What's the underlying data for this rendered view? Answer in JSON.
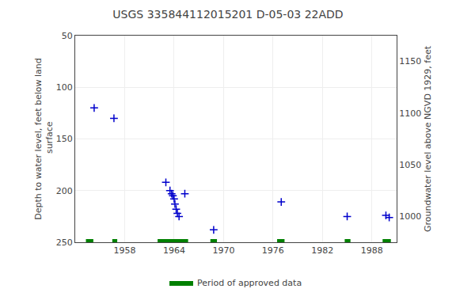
{
  "chart_data": {
    "type": "scatter",
    "title": "USGS 335844112015201 D-05-03 22ADD",
    "ylabel": "Depth to water level, feet below land\n surface",
    "y2label": "Groundwater level above NGVD 1929, feet",
    "xlim": [
      1952,
      1991
    ],
    "xticks": [
      1958,
      1964,
      1970,
      1976,
      1982,
      1988
    ],
    "ylim": [
      250,
      50
    ],
    "yticks": [
      50,
      100,
      150,
      200,
      250
    ],
    "y2lim": [
      975,
      1175
    ],
    "y2ticks": [
      1000,
      1050,
      1100,
      1150
    ],
    "grid": true,
    "legend": "bottom",
    "series": [
      {
        "type": "scatter",
        "marker": "plus",
        "color": "#0000CC",
        "x": [
          1954.3,
          1956.7,
          1963.0,
          1963.5,
          1963.7,
          1963.85,
          1964.0,
          1964.1,
          1964.25,
          1964.4,
          1964.6,
          1965.3,
          1968.8,
          1977.0,
          1985.0,
          1989.7,
          1990.1
        ],
        "values": [
          120,
          130,
          192,
          200,
          203,
          205,
          208,
          213,
          218,
          222,
          225,
          203,
          238,
          211,
          225,
          224,
          226
        ]
      },
      {
        "type": "span",
        "name": "Period of approved data",
        "color": "#008000",
        "start": [
          1953.3,
          1956.5,
          1962.0,
          1968.4,
          1976.5,
          1984.7,
          1989.3
        ],
        "end": [
          1954.2,
          1957.1,
          1965.7,
          1969.2,
          1977.4,
          1985.4,
          1990.3
        ]
      }
    ]
  }
}
